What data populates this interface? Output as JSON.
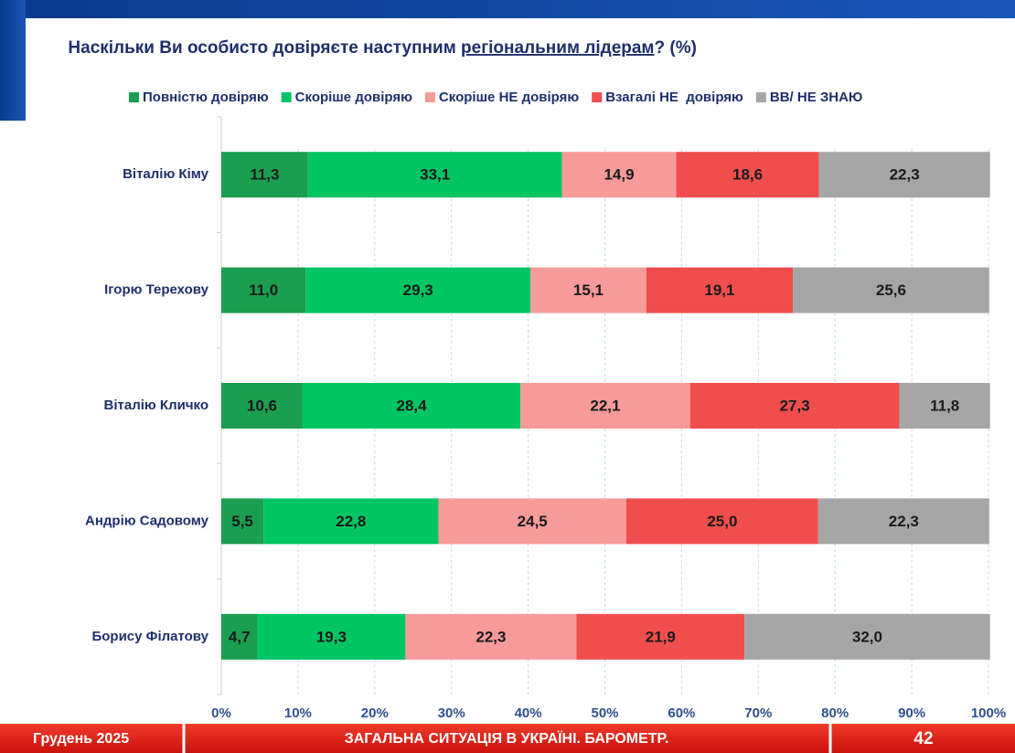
{
  "chart_data": {
    "type": "stacked-bar-horizontal",
    "title": [
      "Наскільки Ви особисто довіряєте наступним ",
      "регіональним лідерам",
      "? (%)"
    ],
    "categories": [
      "Віталію Кіму",
      "Ігорю Терехову",
      "Віталію Кличко",
      "Андрію Садовому",
      "Борису Філатову"
    ],
    "series": [
      {
        "name": "Повністю довіряю",
        "color": "#1a9e4f",
        "values": [
          11.3,
          11.0,
          10.6,
          5.5,
          4.7
        ],
        "value_labels": [
          "11,3",
          "11,0",
          "10,6",
          "5,5",
          "4,7"
        ]
      },
      {
        "name": "Скоріше довіряю",
        "color": "#00c565",
        "values": [
          33.1,
          29.3,
          28.4,
          22.8,
          19.3
        ],
        "value_labels": [
          "33,1",
          "29,3",
          "28,4",
          "22,8",
          "19,3"
        ]
      },
      {
        "name": "Скоріше НЕ довіряю",
        "color": "#f79a9a",
        "values": [
          14.9,
          15.1,
          22.1,
          24.5,
          22.3
        ],
        "value_labels": [
          "14,9",
          "15,1",
          "22,1",
          "24,5",
          "22,3"
        ]
      },
      {
        "name": "Взагалі НЕ  довіряю",
        "color": "#f04e4e",
        "values": [
          18.6,
          19.1,
          27.3,
          25.0,
          21.9
        ],
        "value_labels": [
          "18,6",
          "19,1",
          "27,3",
          "25,0",
          "21,9"
        ]
      },
      {
        "name": "ВВ/ НЕ ЗНАЮ",
        "color": "#a6a6a6",
        "values": [
          22.3,
          25.6,
          11.8,
          22.3,
          32.0
        ],
        "value_labels": [
          "22,3",
          "25,6",
          "11,8",
          "22,3",
          "32,0"
        ]
      }
    ],
    "xlim": [
      0,
      100
    ],
    "xticks": [
      {
        "value": 0,
        "label": "0%"
      },
      {
        "value": 10,
        "label": "10%"
      },
      {
        "value": 20,
        "label": "20%"
      },
      {
        "value": 30,
        "label": "30%"
      },
      {
        "value": 40,
        "label": "40%"
      },
      {
        "value": 50,
        "label": "50%"
      },
      {
        "value": 60,
        "label": "60%"
      },
      {
        "value": 70,
        "label": "70%"
      },
      {
        "value": 80,
        "label": "80%"
      },
      {
        "value": 90,
        "label": "90%"
      },
      {
        "value": 100,
        "label": "100%"
      }
    ],
    "grid": true,
    "legend": "top"
  },
  "footer": {
    "left": "Грудень 2025",
    "center": "ЗАГАЛЬНА СИТУАЦІЯ В УКРАЇНІ. БАРОМЕТР.",
    "page": "42"
  }
}
